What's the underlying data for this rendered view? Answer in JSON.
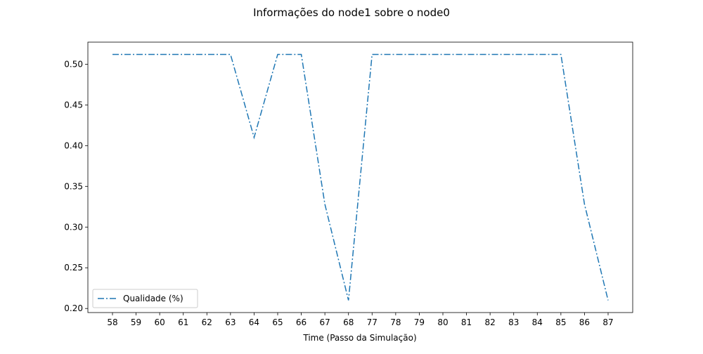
{
  "chart_data": {
    "type": "line",
    "title": "Informações do node1 sobre o node0",
    "xlabel": "Time (Passo da Simulação)",
    "ylabel": "",
    "categories": [
      "58",
      "59",
      "60",
      "61",
      "62",
      "63",
      "64",
      "65",
      "66",
      "67",
      "68",
      "77",
      "78",
      "79",
      "80",
      "81",
      "82",
      "83",
      "84",
      "85",
      "86",
      "87"
    ],
    "series": [
      {
        "name": "Qualidade (%)",
        "color": "#1f77b4",
        "line_style": "dash-dot",
        "values": [
          0.512,
          0.512,
          0.512,
          0.512,
          0.512,
          0.512,
          0.41,
          0.512,
          0.512,
          0.328,
          0.21,
          0.512,
          0.512,
          0.512,
          0.512,
          0.512,
          0.512,
          0.512,
          0.512,
          0.512,
          0.328,
          0.21
        ]
      }
    ],
    "yticks": [
      "0.20",
      "0.25",
      "0.30",
      "0.35",
      "0.40",
      "0.45",
      "0.50"
    ],
    "ylim": [
      0.195,
      0.5271
    ],
    "grid": false,
    "legend_position": "lower-left"
  }
}
